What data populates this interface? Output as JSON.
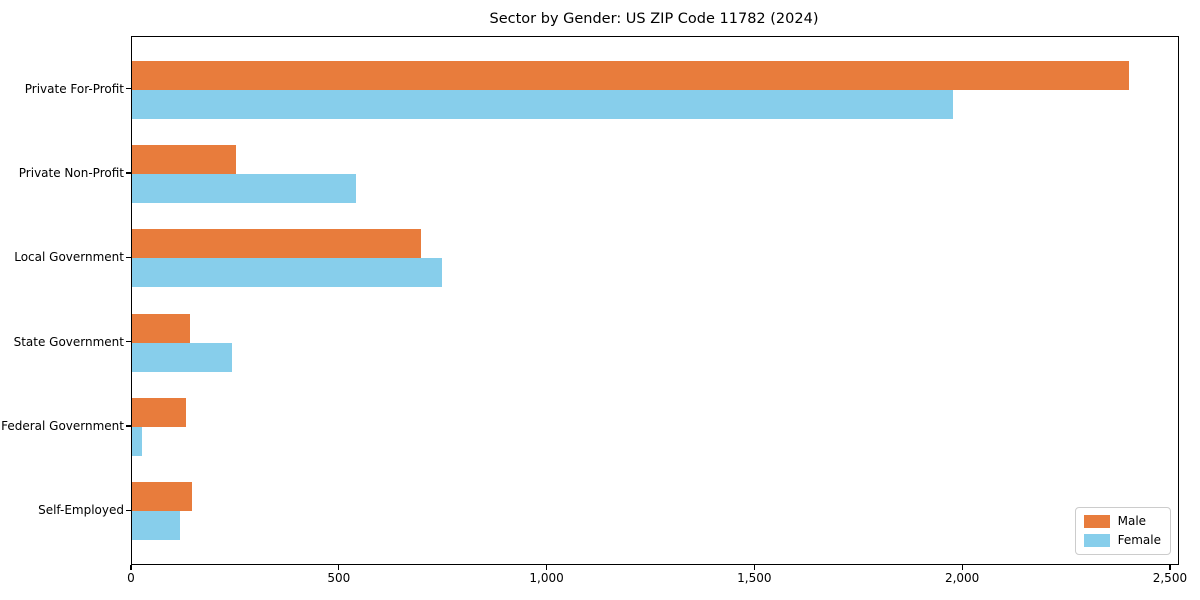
{
  "chart_data": {
    "type": "bar",
    "orientation": "horizontal",
    "title": "Sector by Gender: US ZIP Code 11782 (2024)",
    "categories": [
      "Private For-Profit",
      "Private Non-Profit",
      "Local Government",
      "State Government",
      "Federal Government",
      "Self-Employed"
    ],
    "series": [
      {
        "name": "Male",
        "color": "#e87c3c",
        "values": [
          2400,
          250,
          695,
          140,
          130,
          145
        ]
      },
      {
        "name": "Female",
        "color": "#87ceeb",
        "values": [
          1975,
          540,
          745,
          240,
          25,
          115
        ]
      }
    ],
    "xlabel": "",
    "ylabel": "",
    "xlim": [
      0,
      2517
    ],
    "x_ticks": [
      0,
      500,
      1000,
      1500,
      2000,
      2500
    ],
    "x_tick_labels": [
      "0",
      "500",
      "1,000",
      "1,500",
      "2,000",
      "2,500"
    ],
    "grid": false,
    "legend_position": "lower right",
    "axis_color": "#000000",
    "background_color": "#ffffff"
  }
}
